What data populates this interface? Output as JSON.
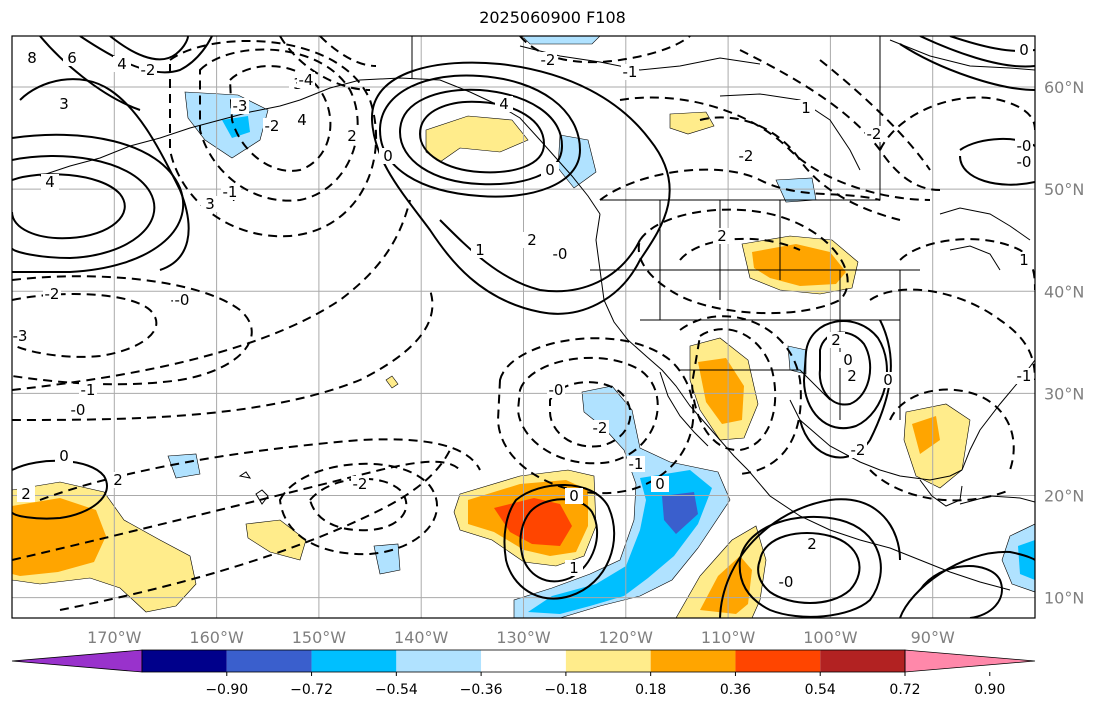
{
  "title": "2025060900 F108",
  "map": {
    "lon_range": [
      -180,
      -80
    ],
    "lat_range": [
      8,
      65
    ],
    "grid_lons": [
      -170,
      -160,
      -150,
      -140,
      -130,
      -120,
      -110,
      -100,
      -90
    ],
    "grid_lats": [
      10,
      20,
      30,
      40,
      50,
      60
    ],
    "lon_labels": [
      "170°W",
      "160°W",
      "150°W",
      "140°W",
      "130°W",
      "120°W",
      "110°W",
      "100°W",
      "90°W"
    ],
    "lat_labels": [
      "10°N",
      "20°N",
      "30°N",
      "40°N",
      "50°N",
      "60°N"
    ],
    "grid_color": "#aaaaaa",
    "coast_color": "#000000"
  },
  "colorbar": {
    "ticks": [
      "−0.90",
      "−0.72",
      "−0.54",
      "−0.36",
      "−0.18",
      "0.18",
      "0.36",
      "0.54",
      "0.72",
      "0.90"
    ],
    "colors": [
      "#9932cc",
      "#00008b",
      "#3a5fcd",
      "#00bfff",
      "#b0e2ff",
      "#ffffff",
      "#ffec8b",
      "#ffa500",
      "#ff4500",
      "#b22222",
      "#ff88aa"
    ]
  },
  "contour_labels": [
    "8",
    "6",
    "4",
    "3",
    "4",
    "4",
    "0",
    "-2",
    "-0",
    "-3",
    "-2",
    "-1",
    "-0",
    "0",
    "2",
    "3",
    "4",
    "3",
    "2",
    "-3",
    "-2",
    "4",
    "0",
    "1",
    "2",
    "-0",
    "-2",
    "-1",
    "2",
    "-2",
    "1",
    "-2",
    "-0",
    "0",
    "-0",
    "1",
    "-1",
    "0",
    "0",
    "-2",
    "1",
    "2",
    "-0",
    "0",
    "-2",
    "-0",
    "-1",
    "2",
    "2",
    "-0",
    "2",
    "-2",
    "0",
    "-3",
    "-4",
    "-1"
  ]
}
